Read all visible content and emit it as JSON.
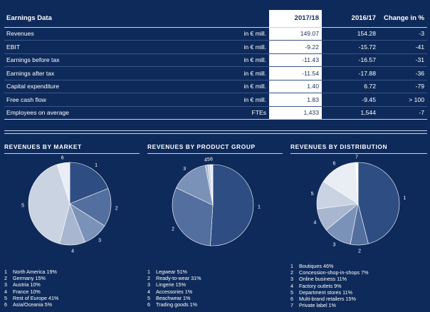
{
  "table": {
    "title": "Earnings Data",
    "headers": [
      "2017/18",
      "2016/17",
      "Change in %"
    ],
    "rows": [
      {
        "label": "Revenues",
        "unit": "in € mill.",
        "y1": "149.07",
        "y2": "154.28",
        "change": "-3"
      },
      {
        "label": "EBIT",
        "unit": "in € mill.",
        "y1": "-9.22",
        "y2": "-15.72",
        "change": "-41"
      },
      {
        "label": "Earnings before tax",
        "unit": "in € mill.",
        "y1": "-11.43",
        "y2": "-16.57",
        "change": "-31"
      },
      {
        "label": "Earnings after tax",
        "unit": "in € mill.",
        "y1": "-11.54",
        "y2": "-17.88",
        "change": "-36"
      },
      {
        "label": "Capital expenditure",
        "unit": "in € mill.",
        "y1": "1.40",
        "y2": "6.72",
        "change": "-79"
      },
      {
        "label": "Free cash flow",
        "unit": "in € mill.",
        "y1": "1.83",
        "y2": "-9.45",
        "change": "> 100"
      },
      {
        "label": "Employees on average",
        "unit": "FTEs",
        "y1": "1,433",
        "y2": "1,544",
        "change": "-7"
      }
    ],
    "highlight_color": "#ffffff"
  },
  "colors": {
    "background": "#0e2a5a",
    "slice_palette": [
      "#2e4d82",
      "#536f9f",
      "#7b92b8",
      "#a8b6cf",
      "#cad3e2",
      "#e9edf4",
      "#ffffff"
    ]
  },
  "chart_data": [
    {
      "type": "pie",
      "title": "REVENUES BY MARKET",
      "slices": [
        {
          "id": "1",
          "label": "North America",
          "value": 19
        },
        {
          "id": "2",
          "label": "Germany",
          "value": 15
        },
        {
          "id": "3",
          "label": "Austria",
          "value": 10
        },
        {
          "id": "4",
          "label": "France",
          "value": 10
        },
        {
          "id": "5",
          "label": "Rest of Europe",
          "value": 41
        },
        {
          "id": "6",
          "label": "Asia/Oceania",
          "value": 5
        }
      ],
      "legend": [
        {
          "num": "1",
          "text": "North America 19%"
        },
        {
          "num": "2",
          "text": "Germany 15%"
        },
        {
          "num": "3",
          "text": "Austria 10%"
        },
        {
          "num": "4",
          "text": "France 10%"
        },
        {
          "num": "5",
          "text": "Rest of Europe 41%"
        },
        {
          "num": "6",
          "text": "Asia/Oceania 5%"
        }
      ]
    },
    {
      "type": "pie",
      "title": "REVENUES BY PRODUCT GROUP",
      "slices": [
        {
          "id": "1",
          "label": "Legwear",
          "value": 51
        },
        {
          "id": "2",
          "label": "Ready-to-wear",
          "value": 31
        },
        {
          "id": "3",
          "label": "Lingerie",
          "value": 15
        },
        {
          "id": "4",
          "label": "Accessories",
          "value": 1
        },
        {
          "id": "5",
          "label": "Beachwear",
          "value": 1
        },
        {
          "id": "6",
          "label": "Trading goods",
          "value": 1
        }
      ],
      "legend": [
        {
          "num": "1",
          "text": "Legwear 51%"
        },
        {
          "num": "2",
          "text": "Ready-to-wear 31%"
        },
        {
          "num": "3",
          "text": "Lingerie 15%"
        },
        {
          "num": "4",
          "text": "Accessories 1%"
        },
        {
          "num": "5",
          "text": "Beachwear 1%"
        },
        {
          "num": "6",
          "text": "Trading goods 1%"
        }
      ]
    },
    {
      "type": "pie",
      "title": "REVENUES BY DISTRIBUTION",
      "slices": [
        {
          "id": "1",
          "label": "Boutiques",
          "value": 46
        },
        {
          "id": "2",
          "label": "Concession-shop-in-shops",
          "value": 7
        },
        {
          "id": "3",
          "label": "Online business",
          "value": 11
        },
        {
          "id": "4",
          "label": "Factory outlets",
          "value": 9
        },
        {
          "id": "5",
          "label": "Department stores",
          "value": 11
        },
        {
          "id": "6",
          "label": "Multi-brand retailers",
          "value": 15
        },
        {
          "id": "7",
          "label": "Private label",
          "value": 1
        }
      ],
      "legend": [
        {
          "num": "1",
          "text": "Boutiques 46%"
        },
        {
          "num": "2",
          "text": "Concession-shop-in-shops 7%"
        },
        {
          "num": "3",
          "text": "Online business 11%"
        },
        {
          "num": "4",
          "text": "Factory outlets 9%"
        },
        {
          "num": "5",
          "text": "Department stores 11%"
        },
        {
          "num": "6",
          "text": "Multi-brand retailers 15%"
        },
        {
          "num": "7",
          "text": "Private label 1%"
        }
      ]
    }
  ]
}
